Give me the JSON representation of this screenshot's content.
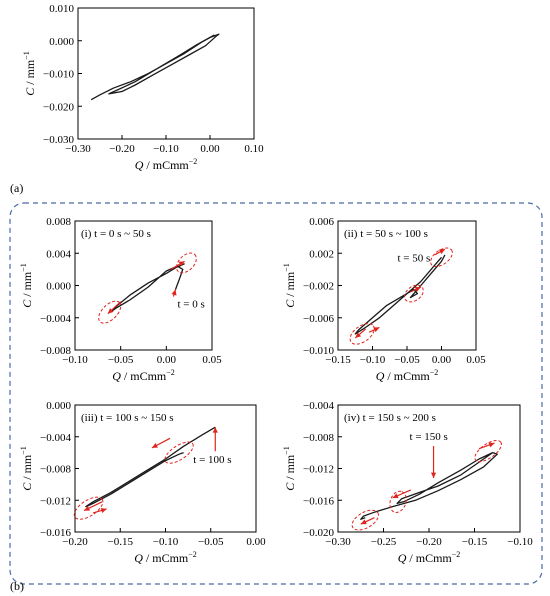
{
  "colors": {
    "curve": "#1a1a1a",
    "annotation": "#e0231c",
    "frame": "#4a6aa8",
    "axis": "#000000"
  },
  "panel_labels": {
    "a": "(a)",
    "b": "(b)"
  },
  "chart_data": [
    {
      "id": "a",
      "type": "line",
      "title": "",
      "xlabel": {
        "italic": "Q",
        "unit": " / mCmm",
        "sup": "−2"
      },
      "ylabel": {
        "italic": "C",
        "unit": " / mm",
        "sup": "−1"
      },
      "xlim": [
        -0.3,
        0.1
      ],
      "ylim": [
        -0.03,
        0.01
      ],
      "xticks": [
        "-0.30",
        "-0.20",
        "-0.10",
        "0.00",
        "0.10"
      ],
      "yticks": [
        "0.010",
        "0.000",
        "-0.010",
        "-0.020",
        "-0.030"
      ],
      "grid": false,
      "series": [
        {
          "x": [
            -0.27,
            -0.25,
            -0.22,
            -0.18,
            -0.14,
            -0.1,
            -0.06,
            -0.02,
            0.0,
            0.02,
            0.015,
            -0.01,
            -0.05,
            -0.09,
            -0.13,
            -0.17,
            -0.2,
            -0.23,
            -0.21,
            -0.17,
            -0.12,
            -0.07,
            -0.03,
            0.01
          ],
          "y": [
            -0.018,
            -0.0165,
            -0.0145,
            -0.0125,
            -0.01,
            -0.007,
            -0.004,
            -0.0005,
            0.001,
            0.002,
            0.0015,
            -0.0015,
            -0.0045,
            -0.0075,
            -0.0105,
            -0.0135,
            -0.0155,
            -0.0162,
            -0.015,
            -0.0125,
            -0.0085,
            -0.0045,
            -0.0012,
            0.0018
          ]
        }
      ]
    },
    {
      "id": "b-i",
      "type": "line",
      "title": "(i) t = 0 s ~ 50 s",
      "xlabel": {
        "italic": "Q",
        "unit": " / mCmm",
        "sup": "−2"
      },
      "ylabel": {
        "italic": "C",
        "unit": " / mm",
        "sup": "−1"
      },
      "xlim": [
        -0.1,
        0.05
      ],
      "ylim": [
        -0.008,
        0.008
      ],
      "xticks": [
        "-0.10",
        "-0.05",
        "0.00",
        "0.05"
      ],
      "yticks": [
        "0.008",
        "0.004",
        "0.000",
        "-0.004",
        "-0.008"
      ],
      "grid": false,
      "series": [
        {
          "x": [
            0.01,
            0.015,
            0.018,
            0.012,
            0.0,
            -0.02,
            -0.04,
            -0.055,
            -0.06,
            -0.055,
            -0.04,
            -0.02,
            0.0,
            0.01,
            0.018,
            0.02
          ],
          "y": [
            -0.0005,
            0.001,
            0.002,
            0.0024,
            0.0018,
            -0.0002,
            -0.0018,
            -0.0028,
            -0.0032,
            -0.0026,
            -0.0012,
            0.0003,
            0.0015,
            0.0022,
            0.0026,
            0.0027
          ]
        }
      ],
      "annotation": {
        "text": "t = 0 s",
        "x": 0.01,
        "y": -0.0005
      },
      "arrows": [
        {
          "x1": 0.005,
          "y1": 0.002,
          "x2": 0.02,
          "y2": 0.003
        },
        {
          "x1": -0.05,
          "y1": -0.002,
          "x2": -0.064,
          "y2": -0.0035
        }
      ],
      "dashed_ellipses": [
        {
          "cx": 0.022,
          "cy": 0.0028,
          "rx": 0.013,
          "ry": 0.00055,
          "angle_deg": -45
        },
        {
          "cx": -0.062,
          "cy": -0.0033,
          "rx": 0.015,
          "ry": 0.00055,
          "angle_deg": -45
        }
      ]
    },
    {
      "id": "b-ii",
      "type": "line",
      "title": "(ii) t = 50 s ~ 100 s",
      "xlabel": {
        "italic": "Q",
        "unit": " / mCmm",
        "sup": "−2"
      },
      "ylabel": {
        "italic": "C",
        "unit": " / mm",
        "sup": "−1"
      },
      "xlim": [
        -0.15,
        0.05
      ],
      "ylim": [
        -0.01,
        0.006
      ],
      "xticks": [
        "-0.15",
        "-0.10",
        "-0.05",
        "0.00",
        "0.05"
      ],
      "yticks": [
        "0.006",
        "0.002",
        "-0.002",
        "-0.006",
        "-0.010"
      ],
      "grid": false,
      "series": [
        {
          "x": [
            0.0,
            -0.01,
            -0.03,
            -0.05,
            -0.07,
            -0.09,
            -0.11,
            -0.125,
            -0.12,
            -0.1,
            -0.08,
            -0.06,
            -0.04,
            -0.035,
            -0.045,
            -0.03,
            -0.015,
            0.0,
            0.005
          ],
          "y": [
            0.0015,
            0.0005,
            -0.0015,
            -0.003,
            -0.0045,
            -0.006,
            -0.0072,
            -0.008,
            -0.0075,
            -0.006,
            -0.0045,
            -0.0035,
            -0.0025,
            -0.003,
            -0.0035,
            -0.002,
            -0.0005,
            0.001,
            0.0018
          ]
        }
      ],
      "annotation": {
        "text": "t = 50 s",
        "x": 0.0,
        "y": 0.0015
      },
      "arrows": [
        {
          "x1": -0.01,
          "y1": 0.0018,
          "x2": 0.005,
          "y2": 0.0025
        },
        {
          "x1": -0.045,
          "y1": -0.0028,
          "x2": -0.03,
          "y2": -0.0022
        },
        {
          "x1": -0.11,
          "y1": -0.0074,
          "x2": -0.125,
          "y2": -0.0085
        },
        {
          "x1": -0.105,
          "y1": -0.0078,
          "x2": -0.09,
          "y2": -0.0072
        }
      ],
      "dashed_ellipses": [
        {
          "cx": 0.0,
          "cy": 0.0015,
          "rx": 0.018,
          "ry": 0.0005,
          "angle_deg": -36
        },
        {
          "cx": -0.04,
          "cy": -0.003,
          "rx": 0.015,
          "ry": 0.0005,
          "angle_deg": -36
        },
        {
          "cx": -0.115,
          "cy": -0.008,
          "rx": 0.02,
          "ry": 0.0006,
          "angle_deg": -36
        }
      ]
    },
    {
      "id": "b-iii",
      "type": "line",
      "title": "(iii) t = 100 s ~ 150 s",
      "xlabel": {
        "italic": "Q",
        "unit": " / mCmm",
        "sup": "−2"
      },
      "ylabel": {
        "italic": "C",
        "unit": " / mm",
        "sup": "−1"
      },
      "xlim": [
        -0.2,
        0.0
      ],
      "ylim": [
        -0.016,
        0.0
      ],
      "xticks": [
        "-0.20",
        "-0.15",
        "-0.10",
        "-0.05",
        "0.00"
      ],
      "yticks": [
        "0.000",
        "-0.004",
        "-0.008",
        "-0.012",
        "-0.016"
      ],
      "grid": false,
      "series": [
        {
          "x": [
            -0.045,
            -0.06,
            -0.08,
            -0.1,
            -0.12,
            -0.14,
            -0.16,
            -0.18,
            -0.188,
            -0.18,
            -0.16,
            -0.14,
            -0.12,
            -0.1,
            -0.085,
            -0.08
          ],
          "y": [
            -0.0028,
            -0.0038,
            -0.0052,
            -0.0068,
            -0.0082,
            -0.0096,
            -0.011,
            -0.0122,
            -0.0128,
            -0.0124,
            -0.0112,
            -0.0098,
            -0.0084,
            -0.007,
            -0.0062,
            -0.006
          ]
        }
      ],
      "annotation": {
        "text": "t = 100 s",
        "x": -0.045,
        "y": -0.0028
      },
      "arrows": [
        {
          "x1": -0.095,
          "y1": -0.0042,
          "x2": -0.115,
          "y2": -0.0054
        },
        {
          "x1": -0.17,
          "y1": -0.0122,
          "x2": -0.19,
          "y2": -0.0133
        },
        {
          "x1": -0.18,
          "y1": -0.0136,
          "x2": -0.165,
          "y2": -0.0131
        }
      ],
      "dashed_ellipses": [
        {
          "cx": -0.085,
          "cy": -0.006,
          "rx": 0.018,
          "ry": 0.0005,
          "angle_deg": -33
        },
        {
          "cx": -0.185,
          "cy": -0.013,
          "rx": 0.018,
          "ry": 0.0006,
          "angle_deg": -33
        }
      ]
    },
    {
      "id": "b-iv",
      "type": "line",
      "title": "(iv) t = 150 s ~ 200 s",
      "xlabel": {
        "italic": "Q",
        "unit": " / mCmm",
        "sup": "−2"
      },
      "ylabel": {
        "italic": "C",
        "unit": " / mm",
        "sup": "−1"
      },
      "xlim": [
        -0.3,
        -0.1
      ],
      "ylim": [
        -0.02,
        -0.004
      ],
      "xticks": [
        "-0.30",
        "-0.25",
        "-0.20",
        "-0.15",
        "-0.10"
      ],
      "yticks": [
        "-0.004",
        "-0.008",
        "-0.012",
        "-0.016",
        "-0.020"
      ],
      "grid": false,
      "series": [
        {
          "x": [
            -0.13,
            -0.145,
            -0.165,
            -0.19,
            -0.21,
            -0.23,
            -0.235,
            -0.228,
            -0.21,
            -0.19,
            -0.165,
            -0.145,
            -0.13,
            -0.125,
            -0.14,
            -0.165,
            -0.19,
            -0.215,
            -0.24,
            -0.26,
            -0.272,
            -0.275,
            -0.27
          ],
          "y": [
            -0.01,
            -0.0112,
            -0.0128,
            -0.0142,
            -0.015,
            -0.0158,
            -0.0164,
            -0.0162,
            -0.0152,
            -0.0138,
            -0.0122,
            -0.0108,
            -0.01,
            -0.0102,
            -0.0118,
            -0.0134,
            -0.0148,
            -0.016,
            -0.0168,
            -0.0175,
            -0.018,
            -0.0184,
            -0.0182
          ]
        }
      ],
      "annotation": {
        "text": "t = 150 s",
        "x": -0.195,
        "y": -0.0132
      },
      "arrows": [
        {
          "x1": -0.145,
          "y1": -0.0095,
          "x2": -0.128,
          "y2": -0.0088
        },
        {
          "x1": -0.22,
          "y1": -0.0147,
          "x2": -0.24,
          "y2": -0.0157
        },
        {
          "x1": -0.26,
          "y1": -0.0182,
          "x2": -0.275,
          "y2": -0.019
        }
      ],
      "dashed_ellipses": [
        {
          "cx": -0.135,
          "cy": -0.0098,
          "rx": 0.017,
          "ry": 0.0005,
          "angle_deg": -35
        },
        {
          "cx": -0.234,
          "cy": -0.0162,
          "rx": 0.012,
          "ry": 0.0006,
          "angle_deg": -70
        },
        {
          "cx": -0.27,
          "cy": -0.0185,
          "rx": 0.016,
          "ry": 0.0006,
          "angle_deg": -30
        }
      ]
    }
  ]
}
